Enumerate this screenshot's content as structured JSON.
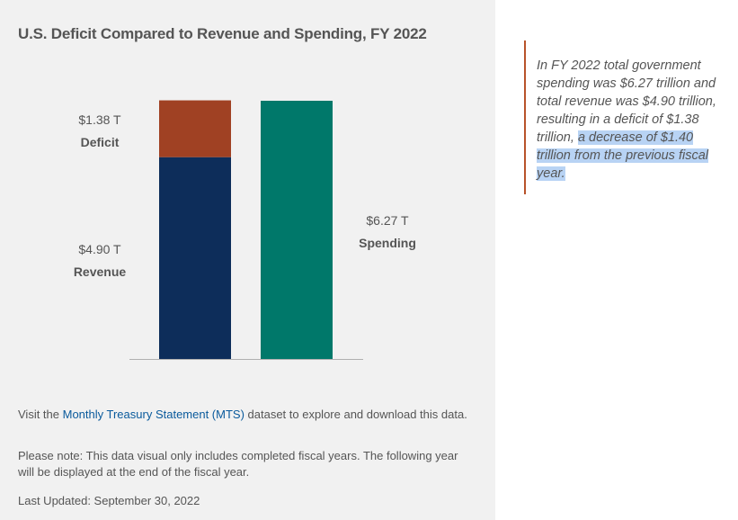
{
  "chart_data": {
    "type": "bar",
    "title": "U.S. Deficit Compared to Revenue and Spending, FY 2022",
    "xlabel": "",
    "ylabel": "",
    "unit": "T",
    "ylim": [
      0,
      6.27
    ],
    "grid": false,
    "series": [
      {
        "name": "Revenue",
        "value": 4.9,
        "value_label": "$4.90 T",
        "label": "Revenue",
        "stack": 0,
        "color": "#0d2d5a"
      },
      {
        "name": "Deficit",
        "value": 1.38,
        "value_label": "$1.38 T",
        "label": "Deficit",
        "stack": 0,
        "color": "#a04123"
      },
      {
        "name": "Spending",
        "value": 6.27,
        "value_label": "$6.27 T",
        "label": "Spending",
        "stack": 1,
        "color": "#00786a"
      }
    ]
  },
  "footer": {
    "visit_prefix": "Visit the ",
    "mts_link": "Monthly Treasury Statement (MTS)",
    "visit_suffix": " dataset to explore and download this data.",
    "note": "Please note: This data visual only includes completed fiscal years. The following year will be displayed at the end of the fiscal year.",
    "last_updated": "Last Updated: September 30, 2022"
  },
  "callout": {
    "text_plain": "In FY 2022 total government spending was $6.27 trillion and total revenue was $4.90 trillion, resulting in a deficit of $1.38 trillion, ",
    "text_highlighted": "a decrease of $1.40 trillion from the previous fiscal year."
  },
  "colors": {
    "panel_bg": "#f1f1f1",
    "callout_border": "#b8532a",
    "link": "#0a5a9c",
    "highlight": "#b8d3f4"
  }
}
